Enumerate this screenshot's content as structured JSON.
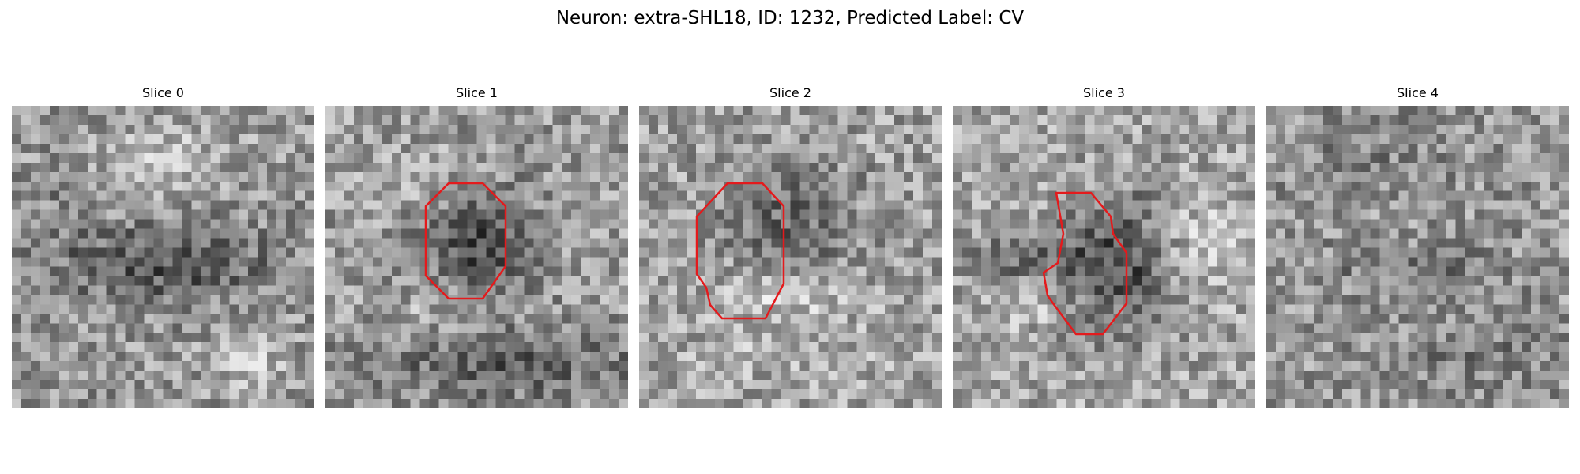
{
  "figure": {
    "title": "Neuron: extra-SHL18, ID: 1232, Predicted Label: CV"
  },
  "panels": [
    {
      "title": "Slice 0",
      "has_contour": false,
      "contour_color": "#e41a1c"
    },
    {
      "title": "Slice 1",
      "has_contour": true,
      "contour_color": "#e41a1c"
    },
    {
      "title": "Slice 2",
      "has_contour": true,
      "contour_color": "#e41a1c"
    },
    {
      "title": "Slice 3",
      "has_contour": true,
      "contour_color": "#e41a1c"
    },
    {
      "title": "Slice 4",
      "has_contour": false,
      "contour_color": "#e41a1c"
    }
  ],
  "colormap": "gray"
}
